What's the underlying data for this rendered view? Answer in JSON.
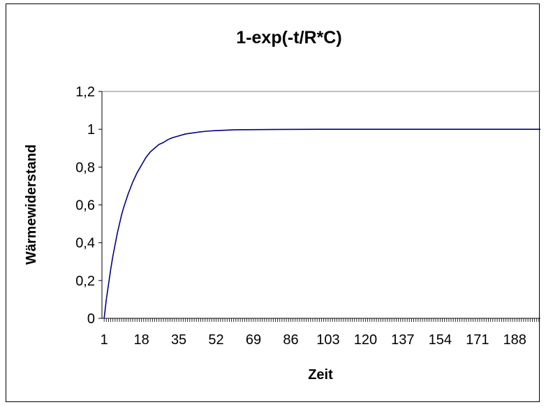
{
  "chart_data": {
    "type": "line",
    "title": "1-exp(-t/R*C)",
    "xlabel": "Zeit",
    "ylabel": "Wärmewiderstand",
    "x_tick_labels": [
      "1",
      "18",
      "35",
      "52",
      "69",
      "86",
      "103",
      "120",
      "137",
      "154",
      "171",
      "188"
    ],
    "x_tick_values": [
      1,
      18,
      35,
      52,
      69,
      86,
      103,
      120,
      137,
      154,
      171,
      188
    ],
    "y_tick_labels": [
      "0",
      "0,2",
      "0,4",
      "0,6",
      "0,8",
      "1",
      "1,2"
    ],
    "y_tick_values": [
      0,
      0.2,
      0.4,
      0.6,
      0.8,
      1.0,
      1.2
    ],
    "xlim": [
      0,
      200
    ],
    "ylim": [
      0,
      1.2
    ],
    "legend": "none",
    "grid": false,
    "series": [
      {
        "color": "#000080",
        "x": [
          1,
          2,
          3,
          4,
          5,
          6,
          7,
          8,
          9,
          10,
          12,
          14,
          16,
          18,
          20,
          22,
          24,
          26,
          28,
          30,
          32,
          35,
          38,
          41,
          44,
          48,
          52,
          56,
          60,
          70,
          80,
          100,
          120,
          140,
          160,
          180,
          200
        ],
        "y": [
          0,
          0.1,
          0.18,
          0.26,
          0.33,
          0.39,
          0.45,
          0.5,
          0.55,
          0.59,
          0.66,
          0.72,
          0.77,
          0.81,
          0.85,
          0.88,
          0.9,
          0.92,
          0.93,
          0.945,
          0.955,
          0.965,
          0.975,
          0.98,
          0.985,
          0.99,
          0.993,
          0.995,
          0.997,
          0.998,
          0.999,
          1.0,
          1.0,
          1.0,
          1.0,
          1.0,
          1.0
        ]
      }
    ]
  }
}
